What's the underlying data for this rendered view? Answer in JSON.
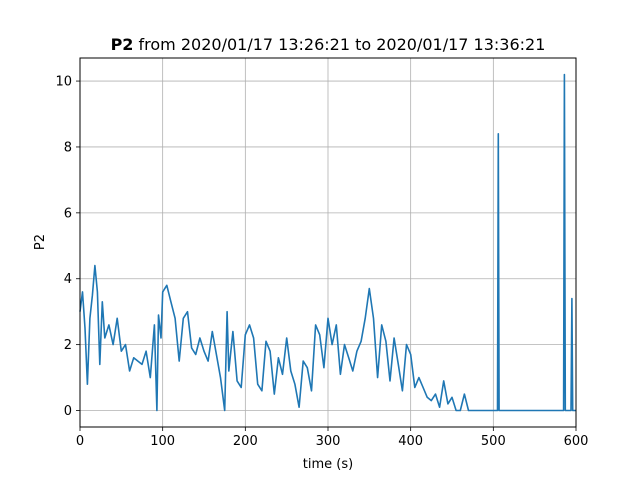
{
  "chart_data": {
    "type": "line",
    "title_bold": "P2",
    "title_rest": " from 2020/01/17 13:26:21 to 2020/01/17 13:36:21",
    "xlabel": "time (s)",
    "ylabel": "P2",
    "xlim": [
      0,
      600
    ],
    "ylim": [
      -0.5,
      10.7
    ],
    "xticks": [
      0,
      100,
      200,
      300,
      400,
      500,
      600
    ],
    "yticks": [
      0,
      2,
      4,
      6,
      8,
      10
    ],
    "grid": true,
    "series": [
      {
        "color": "#1f77b4",
        "x": [
          0,
          3,
          6,
          9,
          12,
          15,
          18,
          21,
          24,
          27,
          30,
          35,
          40,
          45,
          50,
          55,
          60,
          65,
          70,
          75,
          80,
          85,
          90,
          93,
          95,
          98,
          100,
          105,
          110,
          115,
          120,
          125,
          130,
          135,
          140,
          145,
          150,
          155,
          160,
          165,
          170,
          175,
          178,
          180,
          185,
          190,
          195,
          200,
          205,
          210,
          215,
          220,
          225,
          230,
          235,
          240,
          245,
          250,
          255,
          260,
          265,
          270,
          275,
          280,
          285,
          290,
          295,
          300,
          305,
          310,
          315,
          320,
          325,
          330,
          335,
          340,
          345,
          350,
          355,
          360,
          365,
          370,
          375,
          380,
          385,
          390,
          395,
          400,
          405,
          410,
          415,
          420,
          425,
          430,
          435,
          440,
          445,
          450,
          455,
          460,
          465,
          470,
          480,
          490,
          500,
          505,
          506,
          507,
          508,
          520,
          540,
          560,
          585,
          586,
          587,
          588,
          590,
          594,
          595,
          596,
          600
        ],
        "values": [
          3.0,
          3.6,
          2.5,
          0.8,
          2.8,
          3.5,
          4.4,
          3.6,
          1.4,
          3.3,
          2.2,
          2.6,
          2.0,
          2.8,
          1.8,
          2.0,
          1.2,
          1.6,
          1.5,
          1.4,
          1.8,
          1.0,
          2.6,
          0.0,
          2.9,
          2.2,
          3.6,
          3.8,
          3.3,
          2.8,
          1.5,
          2.8,
          3.0,
          1.9,
          1.7,
          2.2,
          1.8,
          1.5,
          2.4,
          1.7,
          1.0,
          0.0,
          3.0,
          1.2,
          2.4,
          0.9,
          0.7,
          2.3,
          2.6,
          2.2,
          0.8,
          0.6,
          2.1,
          1.8,
          0.5,
          1.6,
          1.1,
          2.2,
          1.2,
          0.8,
          0.1,
          1.5,
          1.3,
          0.6,
          2.6,
          2.3,
          1.3,
          2.8,
          2.0,
          2.6,
          1.1,
          2.0,
          1.6,
          1.2,
          1.8,
          2.1,
          2.8,
          3.7,
          2.8,
          1.0,
          2.6,
          2.1,
          0.9,
          2.2,
          1.4,
          0.6,
          2.0,
          1.7,
          0.7,
          1.0,
          0.7,
          0.4,
          0.3,
          0.5,
          0.1,
          0.9,
          0.2,
          0.4,
          0.0,
          0.0,
          0.5,
          0.0,
          0.0,
          0.0,
          0.0,
          0.0,
          8.4,
          0.0,
          0.0,
          0.0,
          0.0,
          0.0,
          0.0,
          10.2,
          0.0,
          0.0,
          0.0,
          0.0,
          3.4,
          0.0,
          0.0
        ]
      }
    ]
  }
}
